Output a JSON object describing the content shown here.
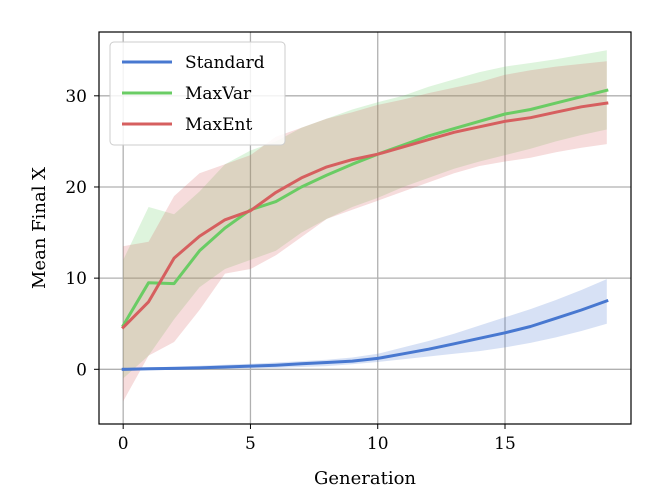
{
  "chart_data": {
    "type": "line",
    "xlabel": "Generation",
    "ylabel": "Mean Final X",
    "xlim": [
      -0.95,
      19.95
    ],
    "ylim": [
      -6,
      37
    ],
    "xticks": [
      0,
      5,
      10,
      15
    ],
    "yticks": [
      0,
      10,
      20,
      30
    ],
    "grid": true,
    "legend_position": "top-left",
    "x": [
      0,
      1,
      2,
      3,
      4,
      5,
      6,
      7,
      8,
      9,
      10,
      11,
      12,
      13,
      14,
      15,
      16,
      17,
      18,
      19
    ],
    "series": [
      {
        "name": "Standard",
        "color": "#4878d0",
        "values": [
          0.0,
          0.05,
          0.1,
          0.15,
          0.25,
          0.35,
          0.45,
          0.6,
          0.75,
          0.9,
          1.2,
          1.7,
          2.2,
          2.8,
          3.4,
          4.0,
          4.7,
          5.6,
          6.5,
          7.5
        ],
        "lower": [
          -0.2,
          -0.1,
          -0.05,
          0.0,
          0.05,
          0.1,
          0.15,
          0.25,
          0.35,
          0.55,
          0.8,
          1.1,
          1.4,
          1.7,
          2.0,
          2.4,
          2.9,
          3.5,
          4.2,
          5.0
        ],
        "upper": [
          0.1,
          0.2,
          0.3,
          0.4,
          0.5,
          0.6,
          0.75,
          0.9,
          1.05,
          1.3,
          1.7,
          2.4,
          3.1,
          3.9,
          4.8,
          5.7,
          6.6,
          7.6,
          8.7,
          9.9
        ]
      },
      {
        "name": "MaxVar",
        "color": "#6acc64",
        "values": [
          4.8,
          9.5,
          9.4,
          13.0,
          15.5,
          17.5,
          18.4,
          20.0,
          21.3,
          22.5,
          23.6,
          24.6,
          25.6,
          26.4,
          27.2,
          28.0,
          28.5,
          29.2,
          29.9,
          30.6
        ],
        "lower": [
          -1.0,
          1.5,
          5.5,
          9.0,
          11.0,
          12.0,
          13.0,
          15.0,
          16.5,
          17.8,
          18.8,
          20.0,
          21.0,
          22.0,
          22.8,
          23.5,
          24.2,
          25.0,
          25.7,
          26.3
        ],
        "upper": [
          12.0,
          17.8,
          17.0,
          19.5,
          22.5,
          24.0,
          25.0,
          26.5,
          27.5,
          28.5,
          29.3,
          30.0,
          31.0,
          31.8,
          32.6,
          33.2,
          33.6,
          34.0,
          34.5,
          35.0
        ]
      },
      {
        "name": "MaxEnt",
        "color": "#d65f5f",
        "values": [
          4.6,
          7.4,
          12.2,
          14.6,
          16.4,
          17.4,
          19.4,
          21.0,
          22.2,
          23.0,
          23.6,
          24.4,
          25.2,
          26.0,
          26.6,
          27.2,
          27.6,
          28.2,
          28.8,
          29.2
        ],
        "lower": [
          -3.5,
          1.5,
          3.0,
          6.5,
          10.5,
          11.0,
          12.5,
          14.5,
          16.5,
          17.5,
          18.5,
          19.5,
          20.5,
          21.5,
          22.3,
          22.8,
          23.2,
          23.8,
          24.3,
          24.7
        ],
        "upper": [
          13.5,
          14.0,
          19.0,
          21.5,
          22.5,
          23.5,
          25.5,
          26.5,
          27.5,
          28.2,
          29.0,
          29.6,
          30.3,
          30.9,
          31.5,
          32.3,
          32.8,
          33.2,
          33.5,
          33.8
        ]
      }
    ]
  }
}
